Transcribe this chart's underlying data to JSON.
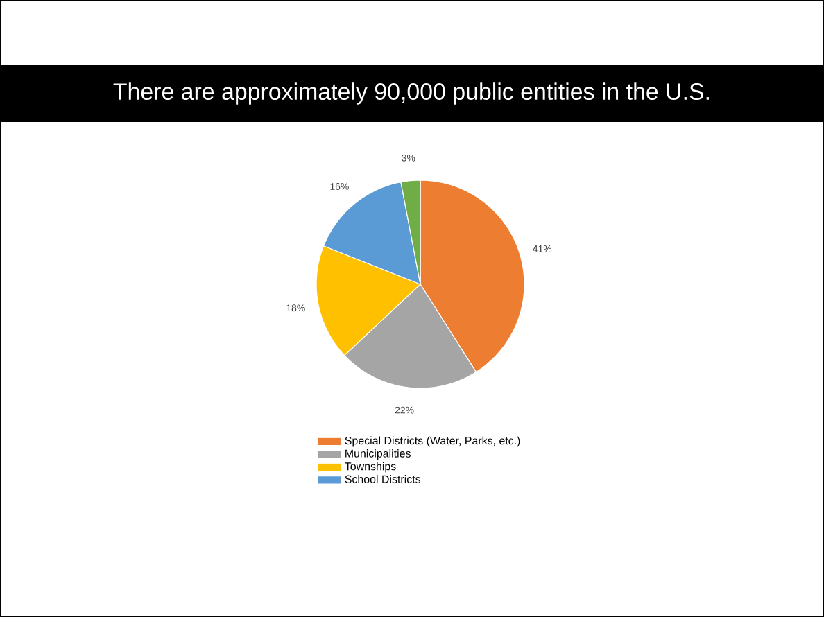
{
  "chart_data": {
    "type": "pie",
    "title": "There are approximately 90,000 public entities in the U.S.",
    "categories": [
      "Special Districts (Water, Parks, etc.)",
      "Municipalities",
      "Townships",
      "School Districts",
      null
    ],
    "values": [
      41,
      22,
      18,
      16,
      3
    ],
    "colors": [
      "#ed7d31",
      "#a5a5a5",
      "#ffc000",
      "#5b9bd5",
      "#70ad47"
    ],
    "value_labels": [
      "41%",
      "22%",
      "18%",
      "16%",
      "3%"
    ],
    "legend": "bottom"
  }
}
